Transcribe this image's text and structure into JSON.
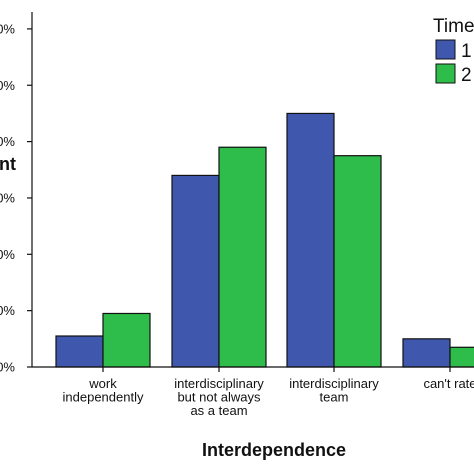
{
  "chart_data": {
    "type": "bar",
    "xlabel": "Interdependence",
    "ylabel": "nt",
    "yticks": [
      "0%",
      "0%",
      "0%",
      "0%",
      "0%",
      "0%",
      "0%"
    ],
    "categories": [
      [
        "work",
        "independently"
      ],
      [
        "interdisciplinary",
        "but not always",
        "as a team"
      ],
      [
        "interdisciplinary",
        "team"
      ],
      [
        "can't rate"
      ]
    ],
    "legend": {
      "title": "Time",
      "placement": "top-right"
    },
    "series": [
      {
        "name": "1",
        "color": "#3F58AE",
        "values": [
          5.5,
          34.0,
          45.0,
          5.0
        ]
      },
      {
        "name": "2",
        "color": "#2EBD4B",
        "values": [
          9.5,
          39.0,
          37.5,
          3.5
        ]
      }
    ],
    "ylim": [
      0,
      63
    ],
    "grid": false
  }
}
